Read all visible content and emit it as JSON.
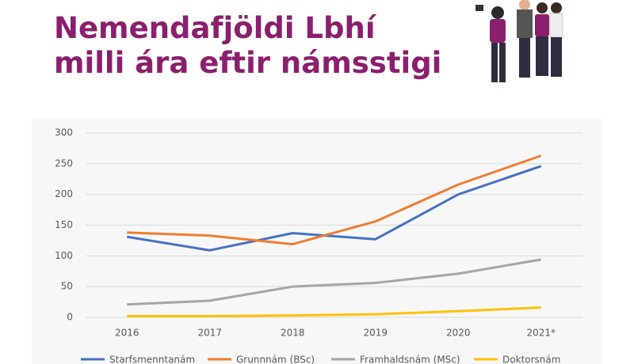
{
  "chart_data": {
    "type": "line",
    "title": [
      "Nemendafjöldi Lbhí",
      "milli ára eftir námsstigi"
    ],
    "categories": [
      "2016",
      "2017",
      "2018",
      "2019",
      "2020",
      "2021*"
    ],
    "series": [
      {
        "name": "Starfsmenntanám",
        "color": "#4472c4",
        "values": [
          131,
          109,
          137,
          127,
          200,
          246
        ]
      },
      {
        "name": "Grunnnám (BSc)",
        "color": "#ed7d31",
        "values": [
          138,
          133,
          119,
          156,
          216,
          263
        ]
      },
      {
        "name": "Framhaldsnám (MSc)",
        "color": "#a5a5a5",
        "values": [
          21,
          27,
          50,
          56,
          71,
          94
        ]
      },
      {
        "name": "Doktorsnám",
        "color": "#ffc000",
        "values": [
          2,
          2,
          3,
          5,
          10,
          16
        ]
      }
    ],
    "ylim": [
      0,
      300
    ],
    "yticks": [
      0,
      50,
      100,
      150,
      200,
      250,
      300
    ],
    "grid": true,
    "legend": "bottom"
  }
}
